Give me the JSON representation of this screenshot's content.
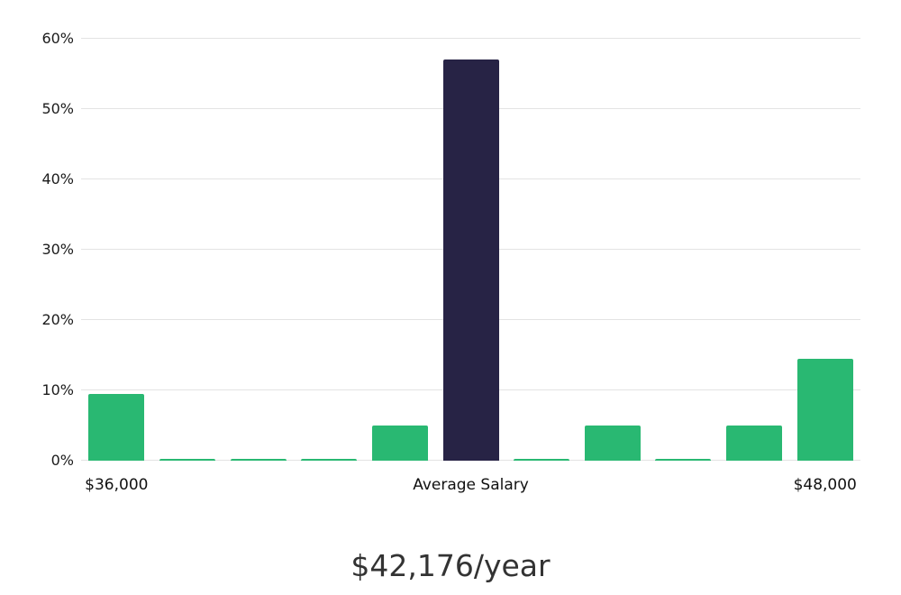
{
  "chart_data": {
    "type": "bar",
    "title": "",
    "caption": "$42,176/year",
    "xlabel": "",
    "ylabel": "",
    "ylim": [
      0,
      60
    ],
    "grid": true,
    "yticks": [
      "0%",
      "10%",
      "20%",
      "30%",
      "40%",
      "50%",
      "60%"
    ],
    "values": [
      9.5,
      0.3,
      0.3,
      0.3,
      5,
      57,
      0.3,
      5,
      0.3,
      5,
      14.5
    ],
    "bar_colors": [
      "green",
      "green",
      "green",
      "green",
      "green",
      "navy",
      "green",
      "green",
      "green",
      "green",
      "green"
    ],
    "highlight_index": 5,
    "colors": {
      "green": "#29b872",
      "navy": "#272345",
      "gridline": "#e3e3e3",
      "text": "#1b1b1b"
    },
    "x_tick_labels": [
      {
        "slot": 0,
        "label": "$36,000"
      },
      {
        "slot": 5,
        "label": "Average Salary"
      },
      {
        "slot": 10,
        "label": "$48,000"
      }
    ],
    "legend": "none"
  }
}
